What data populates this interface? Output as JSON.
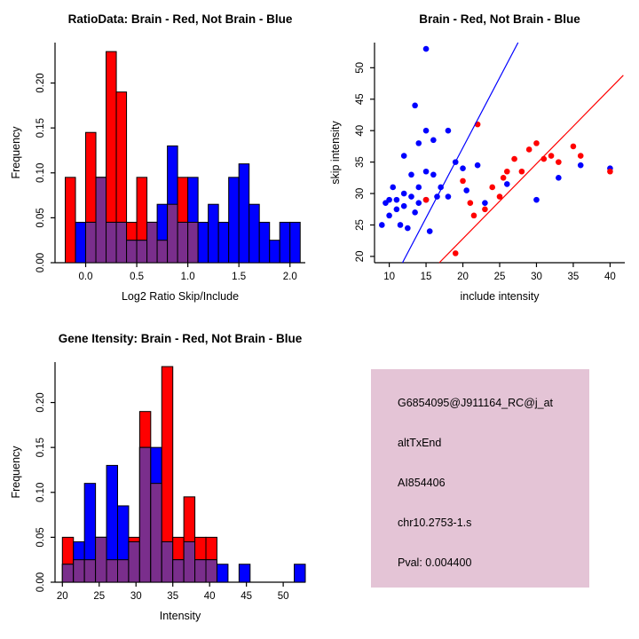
{
  "page": {
    "background": "#FFFFFF"
  },
  "colors": {
    "brain": "#FF0000",
    "not_brain": "#0000FF",
    "overlap": "#7A2E8C",
    "pval": "#AA0000",
    "info_bg": "#E4C4D6"
  },
  "chart_data": [
    {
      "type": "bar",
      "subtype": "histogram-overlay",
      "title": "RatioData: Brain - Red, Not Brain - Blue",
      "xlabel": "Log2 Ratio Skip/Include",
      "ylabel": "Frequency",
      "xlim": [
        -0.3,
        2.15
      ],
      "ylim": [
        0,
        0.245
      ],
      "xticks": [
        0,
        0.5,
        1,
        1.5,
        2
      ],
      "xtick_labels": [
        "0.0",
        "0.5",
        "1.0",
        "1.5",
        "2.0"
      ],
      "yticks": [
        0,
        0.05,
        0.1,
        0.15,
        0.2
      ],
      "ytick_labels": [
        "0.00",
        "0.05",
        "0.10",
        "0.15",
        "0.20"
      ],
      "bin_start": -0.2,
      "bin_width": 0.1,
      "overlap_color": "#7A2E8C",
      "series": [
        {
          "name": "Brain",
          "color": "#FF0000",
          "values": [
            0.095,
            0,
            0.145,
            0.095,
            0.235,
            0.19,
            0.045,
            0.095,
            0.045,
            0.025,
            0.065,
            0.095,
            0.045,
            0,
            0,
            0,
            0,
            0,
            0,
            0,
            0,
            0,
            0
          ]
        },
        {
          "name": "Not Brain",
          "color": "#0000FF",
          "values": [
            0,
            0.045,
            0.045,
            0.095,
            0.045,
            0.045,
            0.025,
            0.025,
            0.045,
            0.065,
            0.13,
            0.045,
            0.095,
            0.045,
            0.065,
            0.045,
            0.095,
            0.11,
            0.065,
            0.045,
            0.025,
            0.045,
            0.045
          ]
        }
      ]
    },
    {
      "type": "scatter",
      "title": "Brain - Red, Not Brain - Blue",
      "xlabel": "include intensity",
      "ylabel": "skip intensity",
      "xlim": [
        8,
        42
      ],
      "ylim": [
        19,
        54
      ],
      "xticks": [
        10,
        15,
        20,
        25,
        30,
        35,
        40
      ],
      "xtick_labels": [
        "10",
        "15",
        "20",
        "25",
        "30",
        "35",
        "40"
      ],
      "yticks": [
        20,
        25,
        30,
        35,
        40,
        45,
        50
      ],
      "ytick_labels": [
        "20",
        "25",
        "30",
        "35",
        "40",
        "45",
        "50"
      ],
      "series": [
        {
          "name": "Not Brain",
          "color": "#0000FF",
          "points": [
            [
              9,
              25
            ],
            [
              9.5,
              28.5
            ],
            [
              10,
              29
            ],
            [
              10,
              26.5
            ],
            [
              10.5,
              31
            ],
            [
              11,
              29
            ],
            [
              11,
              27.5
            ],
            [
              11.5,
              25
            ],
            [
              12,
              36
            ],
            [
              12,
              30
            ],
            [
              12,
              28
            ],
            [
              12.5,
              24.5
            ],
            [
              13,
              33
            ],
            [
              13,
              29.5
            ],
            [
              13.5,
              27
            ],
            [
              13.5,
              44
            ],
            [
              14,
              38
            ],
            [
              14,
              31
            ],
            [
              14,
              28.5
            ],
            [
              15,
              53
            ],
            [
              15,
              40
            ],
            [
              15,
              33.5
            ],
            [
              15,
              29
            ],
            [
              15.5,
              24
            ],
            [
              16,
              38.5
            ],
            [
              16,
              33
            ],
            [
              16.5,
              29.5
            ],
            [
              17,
              31
            ],
            [
              18,
              40
            ],
            [
              18,
              29.5
            ],
            [
              19,
              35
            ],
            [
              20,
              34
            ],
            [
              20.5,
              30.5
            ],
            [
              22,
              34.5
            ],
            [
              23,
              28.5
            ],
            [
              26,
              31.5
            ],
            [
              30,
              29
            ],
            [
              33,
              32.5
            ],
            [
              36,
              34.5
            ],
            [
              40,
              34
            ]
          ]
        },
        {
          "name": "Brain",
          "color": "#FF0000",
          "points": [
            [
              15,
              29
            ],
            [
              19,
              20.5
            ],
            [
              20,
              32
            ],
            [
              21,
              28.5
            ],
            [
              21.5,
              26.5
            ],
            [
              22,
              41
            ],
            [
              23,
              27.5
            ],
            [
              24,
              31
            ],
            [
              25,
              29.5
            ],
            [
              25.5,
              32.5
            ],
            [
              26,
              33.5
            ],
            [
              27,
              35.5
            ],
            [
              28,
              33.5
            ],
            [
              29,
              37
            ],
            [
              30,
              38
            ],
            [
              31,
              35.5
            ],
            [
              32,
              36
            ],
            [
              33,
              35
            ],
            [
              35,
              37.5
            ],
            [
              36,
              36
            ],
            [
              40,
              33.5
            ]
          ]
        }
      ],
      "lines": [
        {
          "name": "not-brain-fit",
          "color": "#0000FF",
          "from": [
            11.8,
            19
          ],
          "to": [
            27.5,
            54
          ]
        },
        {
          "name": "brain-fit",
          "color": "#FF0000",
          "from": [
            16.8,
            19
          ],
          "to": [
            41.8,
            48.8
          ]
        }
      ]
    },
    {
      "type": "bar",
      "subtype": "histogram-overlay",
      "title": "Gene Itensity: Brain - Red, Not Brain - Blue",
      "xlabel": "Intensity",
      "ylabel": "Frequency",
      "xlim": [
        19,
        53
      ],
      "ylim": [
        0,
        0.245
      ],
      "xticks": [
        20,
        25,
        30,
        35,
        40,
        45,
        50
      ],
      "xtick_labels": [
        "20",
        "25",
        "30",
        "35",
        "40",
        "45",
        "50"
      ],
      "yticks": [
        0,
        0.05,
        0.1,
        0.15,
        0.2
      ],
      "ytick_labels": [
        "0.00",
        "0.05",
        "0.10",
        "0.15",
        "0.20"
      ],
      "bin_start": 20,
      "bin_width": 1.5,
      "overlap_color": "#7A2E8C",
      "series": [
        {
          "name": "Brain",
          "color": "#FF0000",
          "values": [
            0.05,
            0.025,
            0.025,
            0.05,
            0.025,
            0.025,
            0.05,
            0.19,
            0.11,
            0.24,
            0.05,
            0.095,
            0.05,
            0.05,
            0,
            0,
            0,
            0,
            0,
            0,
            0,
            0
          ]
        },
        {
          "name": "Not Brain",
          "color": "#0000FF",
          "values": [
            0.02,
            0.045,
            0.11,
            0.05,
            0.13,
            0.085,
            0.045,
            0.15,
            0.15,
            0.045,
            0.025,
            0.045,
            0.025,
            0.025,
            0.02,
            0,
            0.02,
            0,
            0,
            0,
            0,
            0.02
          ]
        }
      ]
    },
    {
      "type": "text-panel",
      "bg": "#E4C4D6",
      "lines": [
        {
          "text": "G6854095@J911164_RC@j_at",
          "color": "#000000"
        },
        {
          "text": "altTxEnd",
          "color": "#000000"
        },
        {
          "text": "AI854406",
          "color": "#000000"
        },
        {
          "text": "chr10.2753-1.s",
          "color": "#000000"
        },
        {
          "text": "Pval: 0.004400",
          "color": "#AA0000"
        }
      ]
    }
  ]
}
